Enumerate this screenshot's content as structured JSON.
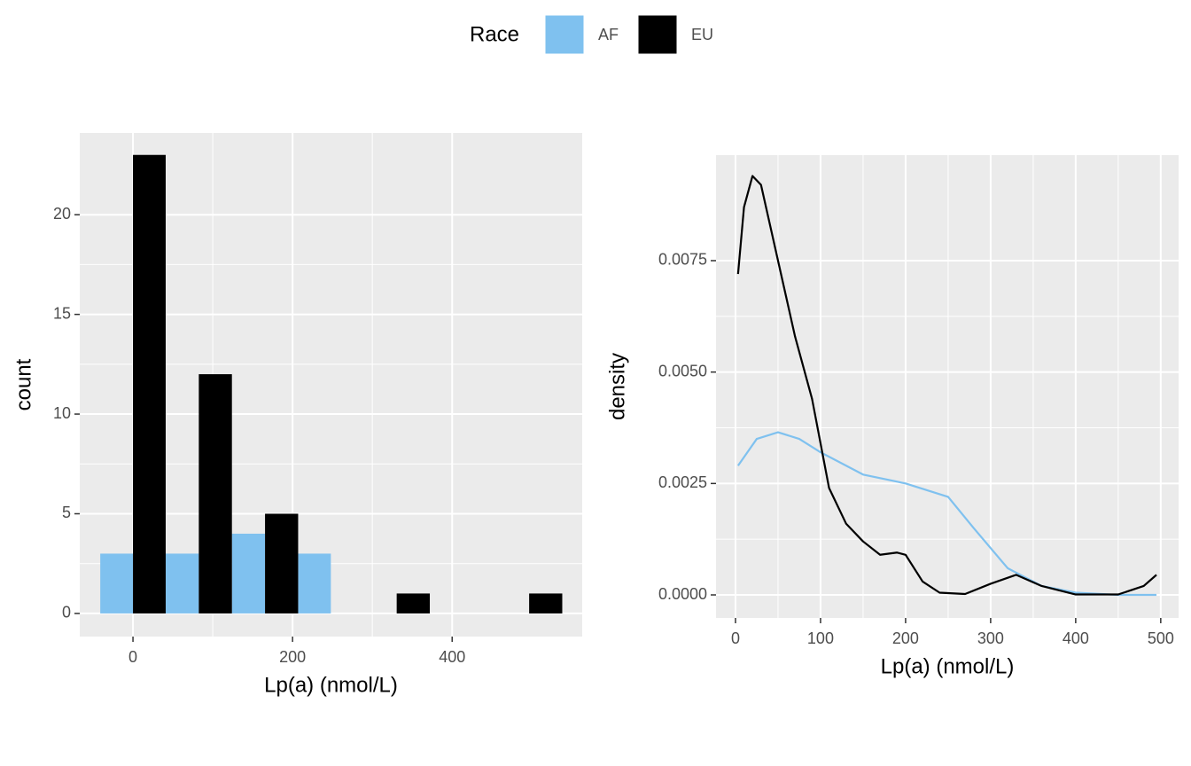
{
  "legend_title": "Race",
  "chart_data": [
    {
      "type": "histogram",
      "xlabel": "Lp(a) (nmol/L)",
      "ylabel": "count",
      "bins": [
        -41,
        41,
        124,
        207,
        289,
        372,
        455,
        538
      ],
      "series": [
        {
          "name": "AF",
          "color": "#7fc1ef",
          "values": [
            3,
            3,
            4,
            3,
            0,
            0,
            0
          ]
        },
        {
          "name": "EU",
          "color": "#000000",
          "values": [
            23,
            12,
            5,
            0,
            1,
            0,
            1
          ]
        }
      ],
      "xlim": [
        -66.7,
        563
      ],
      "ylim": [
        -1.16,
        24.1
      ],
      "xticks": [
        0,
        200,
        400
      ],
      "yticks": [
        0,
        5,
        10,
        15,
        20
      ],
      "grid": true
    },
    {
      "type": "density",
      "xlabel": "Lp(a) (nmol/L)",
      "ylabel": "density",
      "series": [
        {
          "name": "AF",
          "color": "#7fc1ef",
          "x": [
            3,
            25,
            50,
            75,
            100,
            150,
            200,
            250,
            280,
            320,
            360,
            400,
            450,
            495
          ],
          "values": [
            0.0029,
            0.0035,
            0.00365,
            0.0035,
            0.0032,
            0.0027,
            0.0025,
            0.0022,
            0.0015,
            0.0006,
            0.0002,
            5e-05,
            0,
            0
          ]
        },
        {
          "name": "EU",
          "color": "#000000",
          "x": [
            3,
            10,
            20,
            30,
            50,
            70,
            90,
            110,
            130,
            150,
            170,
            190,
            200,
            220,
            240,
            270,
            300,
            330,
            360,
            400,
            450,
            480,
            495
          ],
          "values": [
            0.0072,
            0.0087,
            0.0094,
            0.0092,
            0.0075,
            0.0058,
            0.0044,
            0.0024,
            0.0016,
            0.0012,
            0.0009,
            0.00095,
            0.0009,
            0.0003,
            5e-05,
            2e-05,
            0.00025,
            0.00045,
            0.0002,
            1e-05,
            1e-05,
            0.0002,
            0.00045
          ]
        }
      ],
      "xlim": [
        -22.9,
        521
      ],
      "ylim": [
        -0.000517,
        0.009867
      ],
      "xticks": [
        0,
        100,
        200,
        300,
        400,
        500
      ],
      "yticks": [
        {
          "value": 0,
          "label": "0.0000"
        },
        {
          "value": 0.0025,
          "label": "0.0025"
        },
        {
          "value": 0.005,
          "label": "0.0050"
        },
        {
          "value": 0.0075,
          "label": "0.0075"
        }
      ],
      "grid": true
    }
  ]
}
